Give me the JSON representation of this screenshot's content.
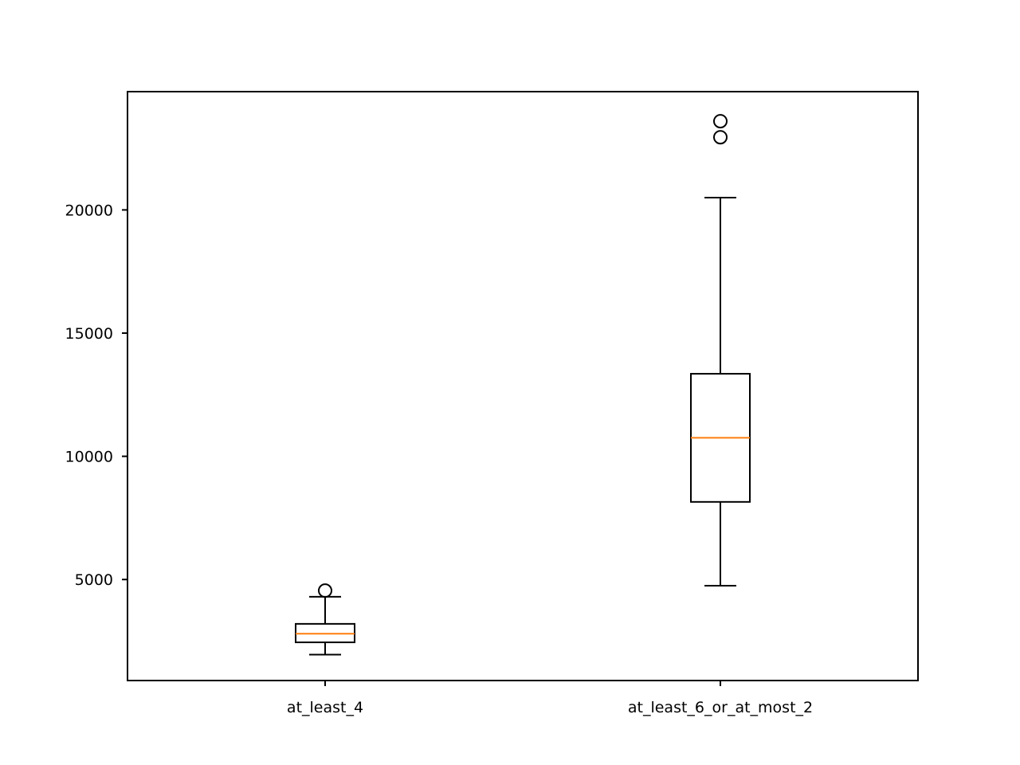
{
  "chart_data": {
    "type": "box",
    "title": "",
    "xlabel": "",
    "ylabel": "",
    "ylim": [
      900,
      24800
    ],
    "yticks": [
      5000,
      10000,
      15000,
      20000
    ],
    "grid": false,
    "categories": [
      "at_least_4",
      "at_least_6_or_at_most_2"
    ],
    "boxes": [
      {
        "category": "at_least_4",
        "whisker_low": 1950,
        "q1": 2450,
        "median": 2800,
        "q3": 3200,
        "whisker_high": 4300,
        "outliers": [
          4550
        ]
      },
      {
        "category": "at_least_6_or_at_most_2",
        "whisker_low": 4750,
        "q1": 8150,
        "median": 10750,
        "q3": 13350,
        "whisker_high": 20500,
        "outliers": [
          22950,
          23600
        ]
      }
    ],
    "colors": {
      "box": "#000000",
      "median": "#ff7f0e",
      "axes": "#000000"
    }
  }
}
